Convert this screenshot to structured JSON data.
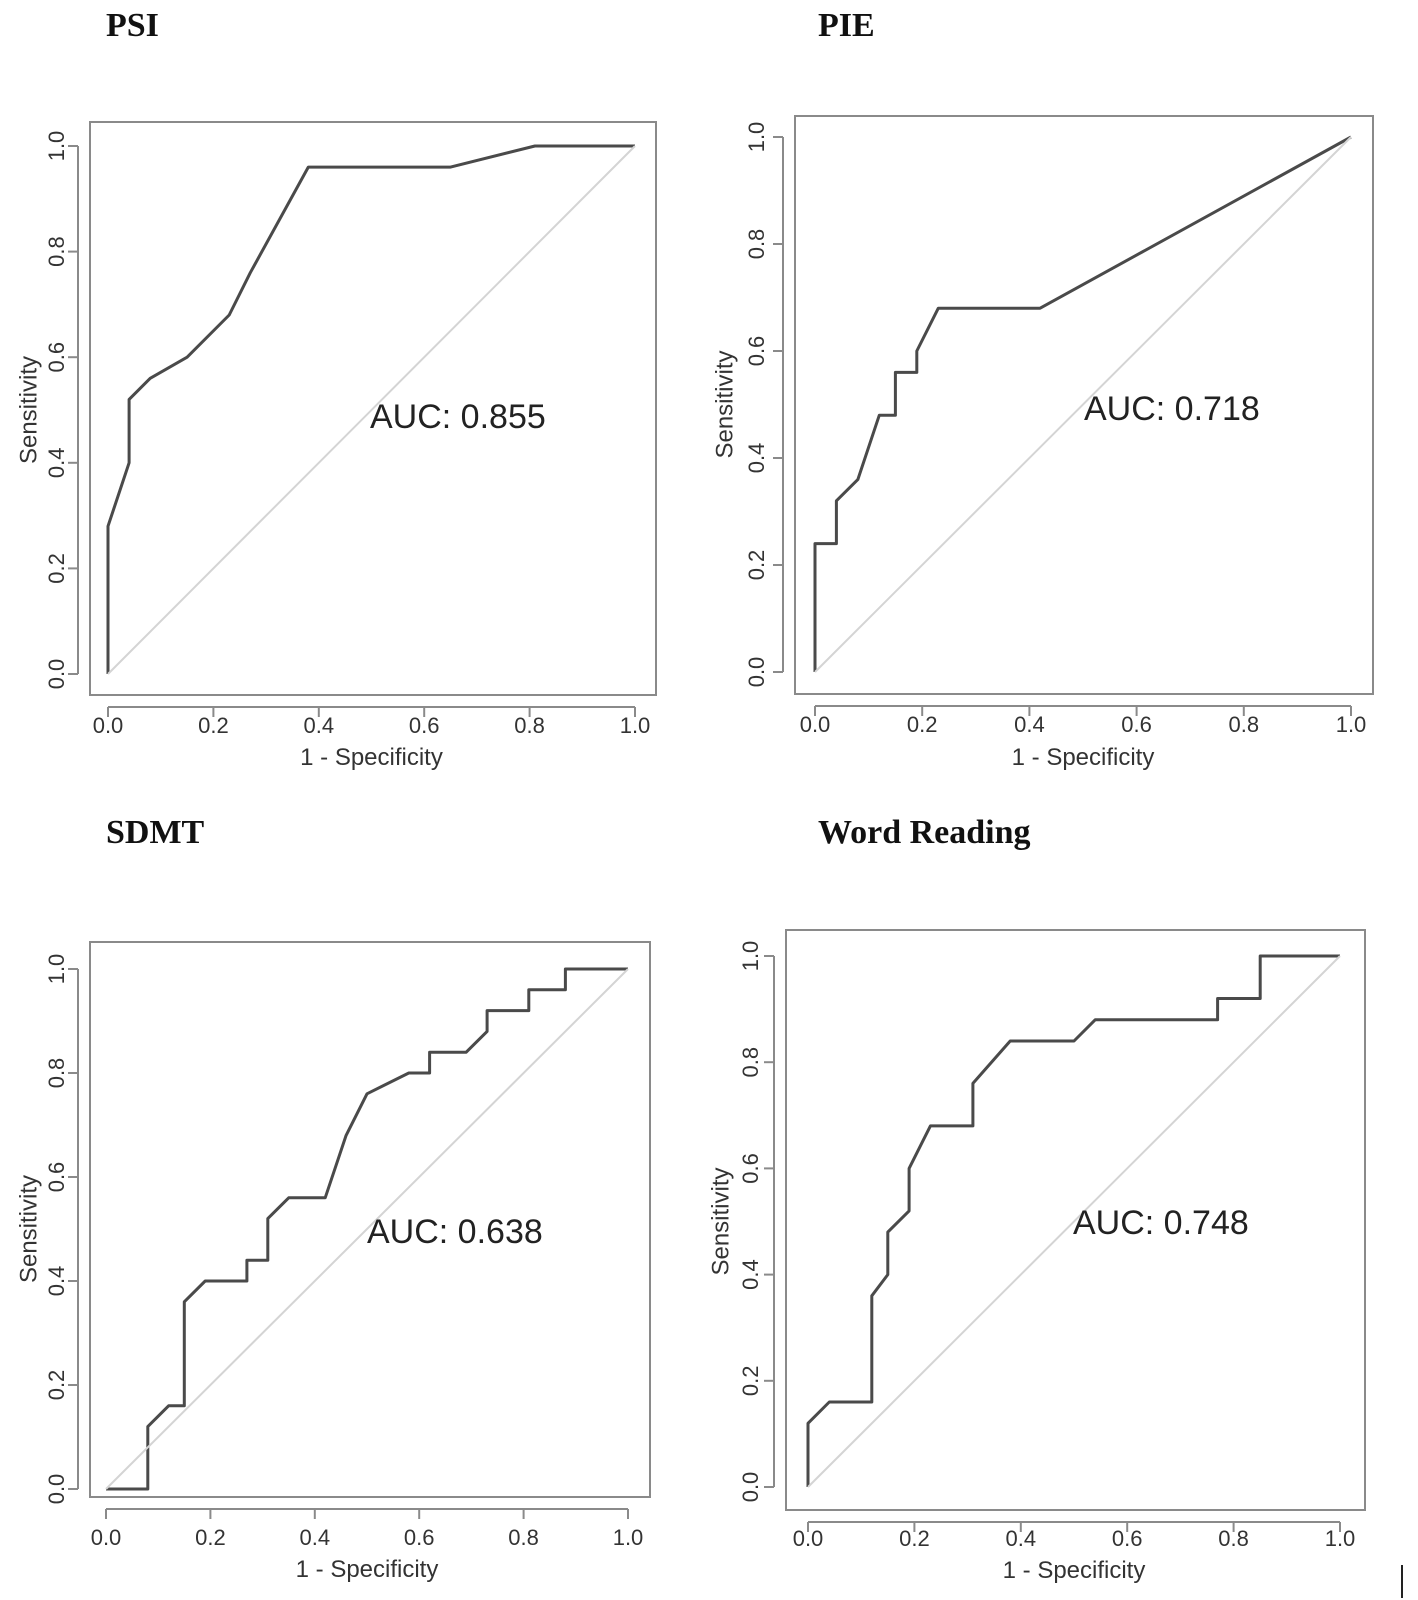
{
  "chart_data": [
    {
      "type": "line",
      "title": "PSI",
      "xlabel": "1 - Specificity",
      "ylabel": "Sensitivity",
      "xlim": [
        0,
        1
      ],
      "ylim": [
        0,
        1
      ],
      "ticks": [
        "0.0",
        "0.2",
        "0.4",
        "0.6",
        "0.8",
        "1.0"
      ],
      "auc_text": "AUC: 0.855",
      "series": [
        {
          "name": "ROC",
          "x": [
            0,
            0,
            0.04,
            0.04,
            0.08,
            0.15,
            0.23,
            0.27,
            0.38,
            0.65,
            0.81,
            1.0
          ],
          "y": [
            0,
            0.28,
            0.4,
            0.52,
            0.56,
            0.6,
            0.68,
            0.76,
            0.96,
            0.96,
            1.0,
            1.0
          ]
        },
        {
          "name": "reference",
          "x": [
            0,
            1
          ],
          "y": [
            0,
            1
          ]
        }
      ]
    },
    {
      "type": "line",
      "title": "PIE",
      "xlabel": "1 - Specificity",
      "ylabel": "Sensitivity",
      "xlim": [
        0,
        1
      ],
      "ylim": [
        0,
        1
      ],
      "ticks": [
        "0.0",
        "0.2",
        "0.4",
        "0.6",
        "0.8",
        "1.0"
      ],
      "auc_text": "AUC: 0.718",
      "series": [
        {
          "name": "ROC",
          "x": [
            0,
            0,
            0.04,
            0.04,
            0.08,
            0.12,
            0.15,
            0.15,
            0.19,
            0.19,
            0.23,
            0.42,
            1.0
          ],
          "y": [
            0,
            0.24,
            0.24,
            0.32,
            0.36,
            0.48,
            0.48,
            0.56,
            0.56,
            0.6,
            0.68,
            0.68,
            1.0
          ]
        },
        {
          "name": "reference",
          "x": [
            0,
            1
          ],
          "y": [
            0,
            1
          ]
        }
      ]
    },
    {
      "type": "line",
      "title": "SDMT",
      "xlabel": "1 - Specificity",
      "ylabel": "Sensitivity",
      "xlim": [
        0,
        1
      ],
      "ylim": [
        0,
        1
      ],
      "ticks": [
        "0.0",
        "0.2",
        "0.4",
        "0.6",
        "0.8",
        "1.0"
      ],
      "auc_text": "AUC: 0.638",
      "series": [
        {
          "name": "ROC",
          "x": [
            0,
            0.08,
            0.08,
            0.12,
            0.15,
            0.15,
            0.19,
            0.27,
            0.27,
            0.31,
            0.31,
            0.35,
            0.42,
            0.46,
            0.5,
            0.58,
            0.62,
            0.62,
            0.69,
            0.73,
            0.73,
            0.81,
            0.81,
            0.88,
            0.88,
            1.0
          ],
          "y": [
            0,
            0,
            0.12,
            0.16,
            0.16,
            0.36,
            0.4,
            0.4,
            0.44,
            0.44,
            0.52,
            0.56,
            0.56,
            0.68,
            0.76,
            0.8,
            0.8,
            0.84,
            0.84,
            0.88,
            0.92,
            0.92,
            0.96,
            0.96,
            1.0,
            1.0
          ]
        },
        {
          "name": "reference",
          "x": [
            0,
            1
          ],
          "y": [
            0,
            1
          ]
        }
      ]
    },
    {
      "type": "line",
      "title": "Word Reading",
      "xlabel": "1 - Specificity",
      "ylabel": "Sensitivity",
      "xlim": [
        0,
        1
      ],
      "ylim": [
        0,
        1
      ],
      "ticks": [
        "0.0",
        "0.2",
        "0.4",
        "0.6",
        "0.8",
        "1.0"
      ],
      "auc_text": "AUC: 0.748",
      "series": [
        {
          "name": "ROC",
          "x": [
            0,
            0,
            0.04,
            0.12,
            0.12,
            0.15,
            0.15,
            0.19,
            0.19,
            0.23,
            0.31,
            0.31,
            0.38,
            0.5,
            0.54,
            0.77,
            0.77,
            0.85,
            0.85,
            1.0
          ],
          "y": [
            0,
            0.12,
            0.16,
            0.16,
            0.36,
            0.4,
            0.48,
            0.52,
            0.6,
            0.68,
            0.68,
            0.76,
            0.84,
            0.84,
            0.88,
            0.88,
            0.92,
            0.92,
            1.0,
            1.0
          ]
        },
        {
          "name": "reference",
          "x": [
            0,
            1
          ],
          "y": [
            0,
            1
          ]
        }
      ]
    }
  ]
}
